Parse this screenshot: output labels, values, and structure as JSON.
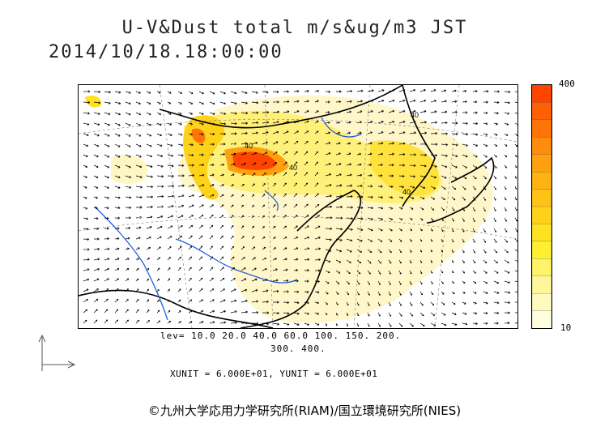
{
  "title_line1": "U-V&Dust total m/s&ug/m3 JST",
  "title_line2": "2014/10/18.18:00:00",
  "colorbar": {
    "max_label": "400",
    "min_label": "10",
    "colors": [
      "#ffffe0",
      "#fffbbf",
      "#fff79a",
      "#fff36a",
      "#ffef2f",
      "#ffe21f",
      "#ffd21a",
      "#ffc215",
      "#ffb212",
      "#ffa00e",
      "#ff8c0a",
      "#ff7406",
      "#ff5e03",
      "#ff4400"
    ]
  },
  "levels_line1": "lev= 10.0 20.0 40.0 60.0 100. 150. 200.",
  "levels_line2": "300. 400.",
  "units_line": "XUNIT = 6.000E+01, YUNIT = 6.000E+01",
  "copyright": "©九州大学応用力学研究所(RIAM)/国立環境研究所(NIES)",
  "contour_labels": [
    "40",
    "40",
    "40",
    "40"
  ],
  "colors": {
    "coastline": "#000000",
    "rivers": "#1f5fe0",
    "grid": "#666666",
    "dust_low": "#fff7c0",
    "dust_high": "#ff4400"
  }
}
